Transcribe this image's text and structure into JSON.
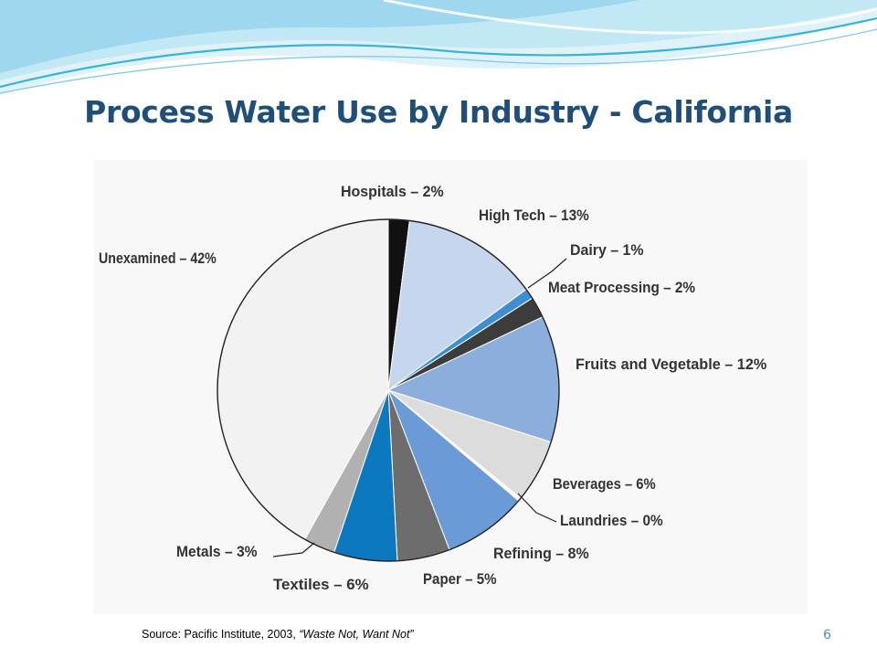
{
  "slide": {
    "title": "Process Water Use by Industry - California",
    "source_prefix": "Source: Pacific Institute, 2003, ",
    "source_title": "“Waste Not, Want Not”",
    "page_number": "6"
  },
  "colors": {
    "title": "#1f4e79",
    "wave_primary": "#38b3d9",
    "wave_light": "#b9e3f2",
    "page_number": "#5b8bb9"
  },
  "chart_data": {
    "type": "pie",
    "title": "",
    "start_angle_deg": 0,
    "direction": "clockwise",
    "legend": "none",
    "slices": [
      {
        "label": "Hospitals – 2%",
        "value": 2,
        "color": "#111111"
      },
      {
        "label": "High Tech – 13%",
        "value": 13,
        "color": "#c5d6ee"
      },
      {
        "label": "Dairy – 1%",
        "value": 1,
        "color": "#3d8fd1"
      },
      {
        "label": "Meat Processing – 2%",
        "value": 2,
        "color": "#3c3c3c"
      },
      {
        "label": "Fruits and Vegetable – 12%",
        "value": 12,
        "color": "#8caedc"
      },
      {
        "label": "Beverages – 6%",
        "value": 6,
        "color": "#dcdcdc"
      },
      {
        "label": "Laundries – 0%",
        "value": 0.3,
        "color": "#ffffff"
      },
      {
        "label": "Refining – 8%",
        "value": 8,
        "color": "#6a9bd6"
      },
      {
        "label": "Paper – 5%",
        "value": 5,
        "color": "#6d6d6d"
      },
      {
        "label": "Textiles – 6%",
        "value": 6,
        "color": "#0b78bf"
      },
      {
        "label": "Metals – 3%",
        "value": 3,
        "color": "#b1b1b1"
      },
      {
        "label": "Unexamined – 42%",
        "value": 42,
        "color": "#f2f2f2"
      }
    ]
  }
}
